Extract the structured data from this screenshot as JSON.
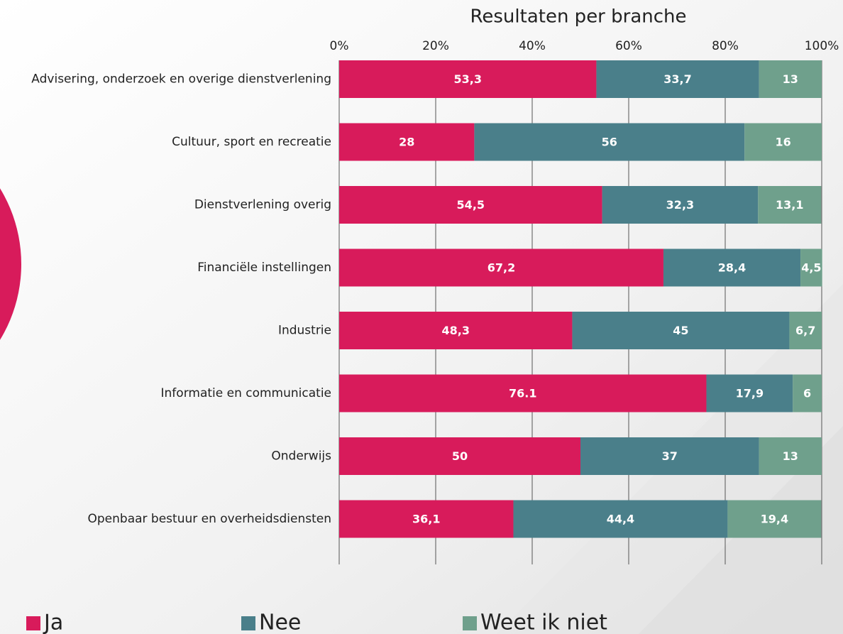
{
  "chart_data": {
    "type": "stacked_barh",
    "title": "Resultaten per branche",
    "categories": [
      "Advisering, onderzoek en overige dienstverlening",
      "Cultuur, sport en recreatie",
      "Dienstverlening overig",
      "Financiële instellingen",
      "Industrie",
      "Informatie en communicatie",
      "Onderwijs",
      "Openbaar bestuur en overheidsdiensten"
    ],
    "series": [
      {
        "name": "Ja",
        "color": "#d81b5b",
        "values": [
          53.3,
          28,
          54.5,
          67.2,
          48.3,
          76.1,
          50,
          36.1
        ],
        "value_labels": [
          "53,3",
          "28",
          "54,5",
          "67,2",
          "48,3",
          "76.1",
          "50",
          "36,1"
        ]
      },
      {
        "name": "Nee",
        "color": "#4a7f8a",
        "values": [
          33.7,
          56,
          32.3,
          28.4,
          45,
          17.9,
          37,
          44.4
        ],
        "value_labels": [
          "33,7",
          "56",
          "32,3",
          "28,4",
          "45",
          "17,9",
          "37",
          "44,4"
        ]
      },
      {
        "name": "Weet ik niet",
        "color": "#6fa08c",
        "values": [
          13,
          16,
          13.1,
          4.5,
          6.7,
          6,
          13,
          19.4
        ],
        "value_labels": [
          "13",
          "16",
          "13,1",
          "4,5",
          "6,7",
          "6",
          "13",
          "19,4"
        ]
      }
    ],
    "xlim": [
      0,
      100
    ],
    "xticks": [
      {
        "value": 0,
        "label": "0%"
      },
      {
        "value": 20,
        "label": "20%"
      },
      {
        "value": 40,
        "label": "40%"
      },
      {
        "value": 60,
        "label": "60%"
      },
      {
        "value": 80,
        "label": "80%"
      },
      {
        "value": 100,
        "label": "100%"
      }
    ],
    "grid": true,
    "legend": "bottom"
  }
}
